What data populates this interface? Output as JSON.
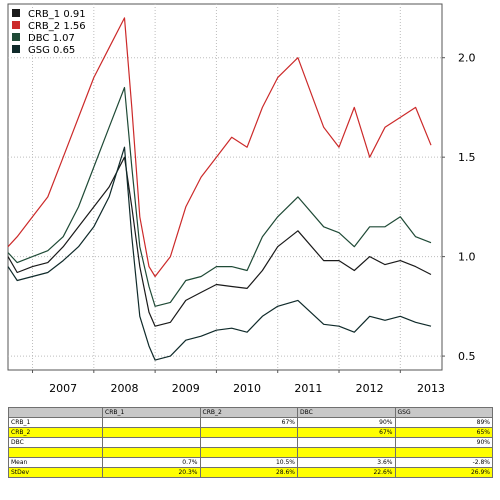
{
  "chart_data": {
    "type": "line",
    "title": "",
    "xlabel": "",
    "ylabel": "",
    "x_ticks": [
      "2007",
      "2008",
      "2009",
      "2010",
      "2011",
      "2012",
      "2013"
    ],
    "y_ticks": [
      "0.5",
      "1.0",
      "1.5",
      "2.0"
    ],
    "ylim": [
      0.43,
      2.27
    ],
    "xlim": [
      2006.6,
      2013.68
    ],
    "grid": true,
    "legend_position": "top-left",
    "series": [
      {
        "name": "CRB_1 0.91",
        "color": "#1a1a1a",
        "x": [
          2006.6,
          2006.75,
          2007.0,
          2007.25,
          2007.5,
          2007.75,
          2008.0,
          2008.25,
          2008.5,
          2008.62,
          2008.75,
          2008.9,
          2009.0,
          2009.25,
          2009.5,
          2009.75,
          2010.0,
          2010.25,
          2010.5,
          2010.75,
          2011.0,
          2011.33,
          2011.75,
          2012.0,
          2012.25,
          2012.5,
          2012.75,
          2013.0,
          2013.25,
          2013.5
        ],
        "values": [
          1.0,
          0.92,
          0.95,
          0.97,
          1.05,
          1.15,
          1.25,
          1.35,
          1.5,
          1.25,
          0.95,
          0.72,
          0.65,
          0.67,
          0.78,
          0.82,
          0.86,
          0.85,
          0.84,
          0.93,
          1.05,
          1.13,
          0.98,
          0.98,
          0.93,
          1.0,
          0.96,
          0.98,
          0.95,
          0.91
        ]
      },
      {
        "name": "CRB_2 1.56",
        "color": "#cc2a2a",
        "x": [
          2006.6,
          2006.75,
          2007.0,
          2007.25,
          2007.5,
          2007.75,
          2008.0,
          2008.25,
          2008.5,
          2008.62,
          2008.75,
          2008.9,
          2009.0,
          2009.25,
          2009.5,
          2009.75,
          2010.0,
          2010.25,
          2010.5,
          2010.75,
          2011.0,
          2011.33,
          2011.75,
          2012.0,
          2012.25,
          2012.5,
          2012.75,
          2013.0,
          2013.25,
          2013.5
        ],
        "values": [
          1.05,
          1.1,
          1.2,
          1.3,
          1.5,
          1.7,
          1.9,
          2.05,
          2.2,
          1.75,
          1.2,
          0.95,
          0.9,
          1.0,
          1.25,
          1.4,
          1.5,
          1.6,
          1.55,
          1.75,
          1.9,
          2.0,
          1.65,
          1.55,
          1.75,
          1.5,
          1.65,
          1.7,
          1.75,
          1.56
        ]
      },
      {
        "name": "DBC 1.07",
        "color": "#1f4a36",
        "x": [
          2006.6,
          2006.75,
          2007.0,
          2007.25,
          2007.5,
          2007.75,
          2008.0,
          2008.25,
          2008.5,
          2008.62,
          2008.75,
          2008.9,
          2009.0,
          2009.25,
          2009.5,
          2009.75,
          2010.0,
          2010.25,
          2010.5,
          2010.75,
          2011.0,
          2011.33,
          2011.75,
          2012.0,
          2012.25,
          2012.5,
          2012.75,
          2013.0,
          2013.25,
          2013.5
        ],
        "values": [
          1.02,
          0.97,
          1.0,
          1.03,
          1.1,
          1.25,
          1.45,
          1.65,
          1.85,
          1.45,
          1.05,
          0.85,
          0.75,
          0.77,
          0.88,
          0.9,
          0.95,
          0.95,
          0.93,
          1.1,
          1.2,
          1.3,
          1.15,
          1.12,
          1.05,
          1.15,
          1.15,
          1.2,
          1.1,
          1.07
        ]
      },
      {
        "name": "GSG 0.65",
        "color": "#0f2a2a",
        "x": [
          2006.6,
          2006.75,
          2007.0,
          2007.25,
          2007.5,
          2007.75,
          2008.0,
          2008.25,
          2008.5,
          2008.62,
          2008.75,
          2008.9,
          2009.0,
          2009.25,
          2009.5,
          2009.75,
          2010.0,
          2010.25,
          2010.5,
          2010.75,
          2011.0,
          2011.33,
          2011.75,
          2012.0,
          2012.25,
          2012.5,
          2012.75,
          2013.0,
          2013.25,
          2013.5
        ],
        "values": [
          0.95,
          0.88,
          0.9,
          0.92,
          0.98,
          1.05,
          1.15,
          1.3,
          1.55,
          1.1,
          0.7,
          0.55,
          0.48,
          0.5,
          0.58,
          0.6,
          0.63,
          0.64,
          0.62,
          0.7,
          0.75,
          0.78,
          0.66,
          0.65,
          0.62,
          0.7,
          0.68,
          0.7,
          0.67,
          0.65
        ]
      }
    ]
  },
  "stats_table": {
    "headers": [
      "",
      "CRB_1",
      "CRB_2",
      "DBC",
      "GSG"
    ],
    "rows": [
      {
        "cells": [
          "CRB_1",
          "",
          "67%",
          "90%",
          "89%"
        ],
        "highlight": false
      },
      {
        "cells": [
          "CRB_2",
          "",
          "",
          "67%",
          "65%"
        ],
        "highlight": true
      },
      {
        "cells": [
          "DBC",
          "",
          "",
          "",
          "90%"
        ],
        "highlight": false
      },
      {
        "cells": [
          "",
          "",
          "",
          "",
          ""
        ],
        "highlight": true
      },
      {
        "cells": [
          "Mean",
          "0.7%",
          "10.5%",
          "3.6%",
          "-2.8%"
        ],
        "highlight": false
      },
      {
        "cells": [
          "StDev",
          "20.3%",
          "28.6%",
          "22.6%",
          "26.9%"
        ],
        "highlight": true
      }
    ]
  }
}
